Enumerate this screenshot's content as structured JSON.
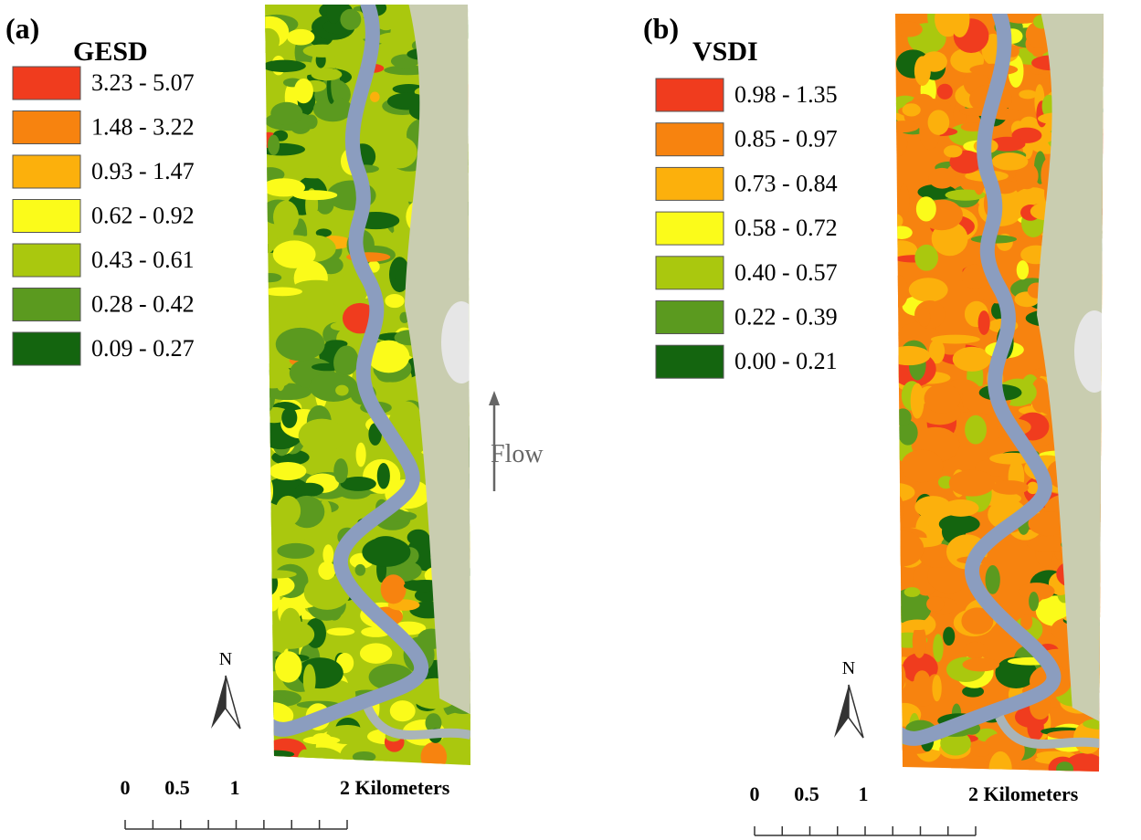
{
  "panels": [
    {
      "label": "(a)",
      "legend_title": "GESD",
      "legend": [
        {
          "label": "3.23 - 5.07",
          "color": "#f03c1e"
        },
        {
          "label": "1.48 - 3.22",
          "color": "#f7830f"
        },
        {
          "label": "0.93 - 1.47",
          "color": "#fcb00c"
        },
        {
          "label": "0.62 - 0.92",
          "color": "#fbfb1a"
        },
        {
          "label": "0.43 - 0.61",
          "color": "#aac80e"
        },
        {
          "label": "0.28 - 0.42",
          "color": "#5b9a1f"
        },
        {
          "label": "0.09 - 0.27",
          "color": "#14650f"
        }
      ],
      "north": "N",
      "flow": "Flow",
      "scale": [
        "0",
        "0.5",
        "1",
        "2 Kilometers"
      ]
    },
    {
      "label": "(b)",
      "legend_title": "VSDI",
      "legend": [
        {
          "label": "0.98 - 1.35",
          "color": "#f03c1e"
        },
        {
          "label": "0.85 - 0.97",
          "color": "#f7830f"
        },
        {
          "label": "0.73 - 0.84",
          "color": "#fcb00c"
        },
        {
          "label": "0.58 - 0.72",
          "color": "#fbfb1a"
        },
        {
          "label": "0.40 - 0.57",
          "color": "#aac80e"
        },
        {
          "label": "0.22 - 0.39",
          "color": "#5b9a1f"
        },
        {
          "label": "0.00 - 0.21",
          "color": "#14650f"
        }
      ],
      "north": "N",
      "scale": [
        "0",
        "0.5",
        "1",
        "2 Kilometers"
      ]
    }
  ]
}
